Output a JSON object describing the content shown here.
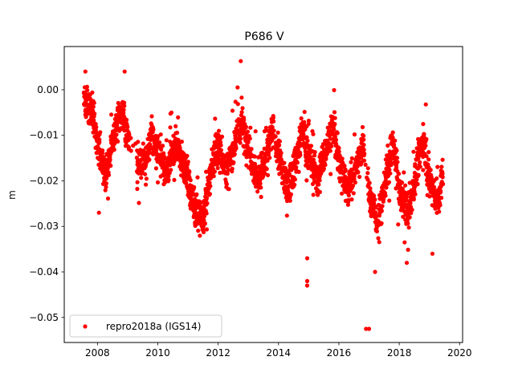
{
  "chart_data": {
    "type": "scatter",
    "title": "P686 V",
    "xlabel": "",
    "ylabel": "m",
    "xlim": [
      2006.9,
      2020.1
    ],
    "ylim": [
      -0.0555,
      0.0095
    ],
    "x_ticks": [
      2008,
      2010,
      2012,
      2014,
      2016,
      2018,
      2020
    ],
    "x_tick_labels": [
      "2008",
      "2010",
      "2012",
      "2014",
      "2016",
      "2018",
      "2020"
    ],
    "y_ticks": [
      0.0,
      -0.01,
      -0.02,
      -0.03,
      -0.04,
      -0.05
    ],
    "y_tick_labels": [
      "0.00",
      "−0.01",
      "−0.02",
      "−0.03",
      "−0.04",
      "−0.05"
    ],
    "grid": false,
    "legend_position": "lower-left",
    "series": [
      {
        "name": "repro2018a (IGS14)",
        "color": "#ff0000",
        "marker": "circle",
        "x_range": [
          2007.55,
          2019.45
        ],
        "trend_points": [
          [
            2007.55,
            -0.001
          ],
          [
            2007.8,
            -0.004
          ],
          [
            2008.0,
            -0.012
          ],
          [
            2008.3,
            -0.018
          ],
          [
            2008.55,
            -0.01
          ],
          [
            2008.75,
            -0.005
          ],
          [
            2009.0,
            -0.01
          ],
          [
            2009.3,
            -0.016
          ],
          [
            2009.6,
            -0.016
          ],
          [
            2009.8,
            -0.01
          ],
          [
            2010.1,
            -0.015
          ],
          [
            2010.3,
            -0.018
          ],
          [
            2010.6,
            -0.012
          ],
          [
            2010.9,
            -0.017
          ],
          [
            2011.2,
            -0.025
          ],
          [
            2011.5,
            -0.029
          ],
          [
            2011.8,
            -0.016
          ],
          [
            2012.0,
            -0.012
          ],
          [
            2012.3,
            -0.018
          ],
          [
            2012.6,
            -0.01
          ],
          [
            2012.8,
            -0.008
          ],
          [
            2013.0,
            -0.012
          ],
          [
            2013.3,
            -0.02
          ],
          [
            2013.6,
            -0.015
          ],
          [
            2013.8,
            -0.009
          ],
          [
            2014.0,
            -0.014
          ],
          [
            2014.3,
            -0.022
          ],
          [
            2014.6,
            -0.015
          ],
          [
            2014.8,
            -0.009
          ],
          [
            2015.0,
            -0.014
          ],
          [
            2015.3,
            -0.02
          ],
          [
            2015.6,
            -0.012
          ],
          [
            2015.8,
            -0.008
          ],
          [
            2016.0,
            -0.016
          ],
          [
            2016.3,
            -0.022
          ],
          [
            2016.6,
            -0.016
          ],
          [
            2016.8,
            -0.012
          ],
          [
            2017.0,
            -0.023
          ],
          [
            2017.3,
            -0.029
          ],
          [
            2017.6,
            -0.018
          ],
          [
            2017.8,
            -0.012
          ],
          [
            2018.0,
            -0.022
          ],
          [
            2018.3,
            -0.027
          ],
          [
            2018.6,
            -0.017
          ],
          [
            2018.8,
            -0.01
          ],
          [
            2019.0,
            -0.02
          ],
          [
            2019.3,
            -0.025
          ],
          [
            2019.45,
            -0.018
          ]
        ],
        "outliers": [
          [
            2007.6,
            0.004
          ],
          [
            2008.05,
            -0.027
          ],
          [
            2008.9,
            0.004
          ],
          [
            2012.75,
            0.0063
          ],
          [
            2014.95,
            -0.043
          ],
          [
            2014.95,
            -0.042
          ],
          [
            2014.95,
            -0.037
          ],
          [
            2016.9,
            -0.0525
          ],
          [
            2017.0,
            -0.0525
          ],
          [
            2017.2,
            -0.04
          ],
          [
            2018.25,
            -0.038
          ],
          [
            2019.1,
            -0.036
          ]
        ]
      }
    ]
  }
}
